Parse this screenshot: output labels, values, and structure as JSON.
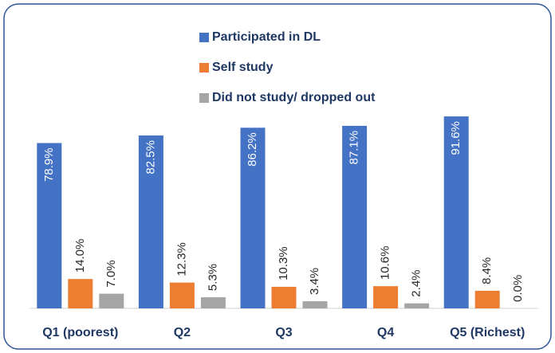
{
  "chart_data": {
    "type": "bar",
    "categories": [
      "Q1 (poorest)",
      "Q2",
      "Q3",
      "Q4",
      "Q5 (Richest)"
    ],
    "series": [
      {
        "name": "Participated in DL",
        "color": "#4472c4",
        "values": [
          78.9,
          82.5,
          86.2,
          87.1,
          91.6
        ],
        "value_labels": [
          "78.9%",
          "82.5%",
          "86.2%",
          "87.1%",
          "91.6%"
        ]
      },
      {
        "name": "Self study",
        "color": "#ed7d31",
        "values": [
          14.0,
          12.3,
          10.3,
          10.6,
          8.4
        ],
        "value_labels": [
          "14.0%",
          "12.3%",
          "10.3%",
          "10.6%",
          "8.4%"
        ]
      },
      {
        "name": "Did not study/ dropped out",
        "color": "#a5a5a5",
        "values": [
          7.0,
          5.3,
          3.4,
          2.4,
          0.0
        ],
        "value_labels": [
          "7.0%",
          "5.3%",
          "3.4%",
          "2.4%",
          "0.0%"
        ]
      }
    ],
    "legend": "top"
  }
}
